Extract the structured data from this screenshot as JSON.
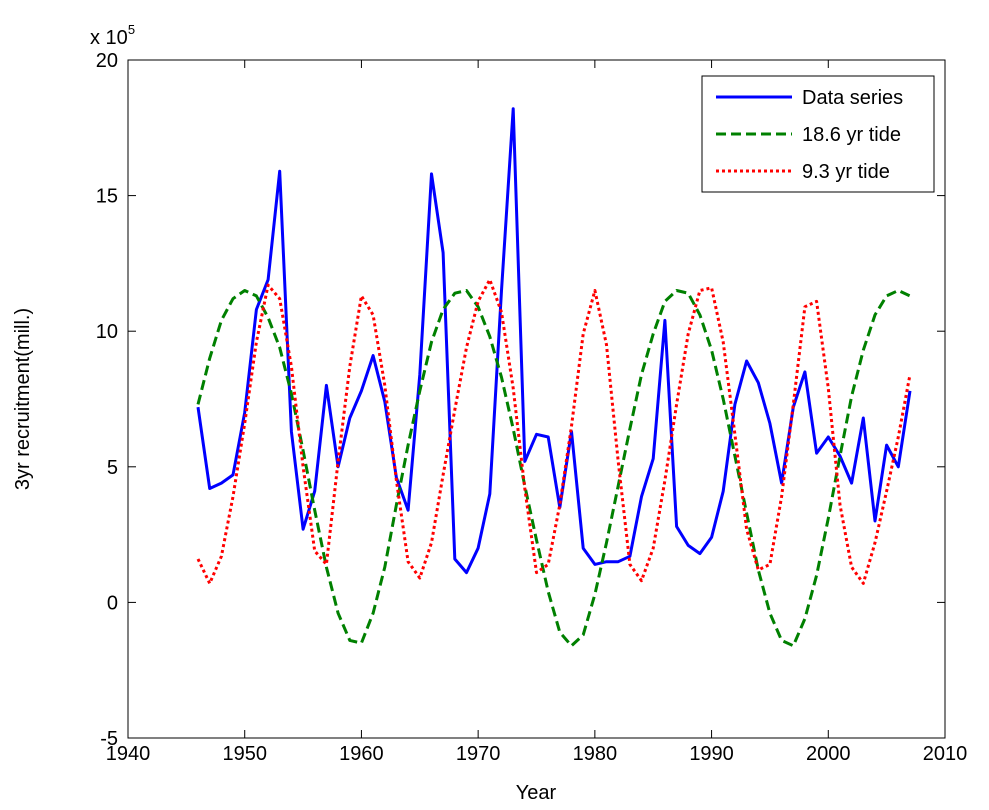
{
  "chart_data": {
    "type": "line",
    "title": "",
    "xlabel": "Year",
    "ylabel": "3yr recruitment(mill.)",
    "y_multiplier": "x 10",
    "y_multiplier_exp": "5",
    "xlim": [
      1940,
      2010
    ],
    "ylim": [
      -5,
      20
    ],
    "xticks": [
      1940,
      1950,
      1960,
      1970,
      1980,
      1990,
      2000,
      2010
    ],
    "yticks": [
      -5,
      0,
      5,
      10,
      15,
      20
    ],
    "grid": false,
    "legend_position": "top-right",
    "x": [
      1946,
      1947,
      1948,
      1949,
      1950,
      1951,
      1952,
      1953,
      1954,
      1955,
      1956,
      1957,
      1958,
      1959,
      1960,
      1961,
      1962,
      1963,
      1964,
      1965,
      1966,
      1967,
      1968,
      1969,
      1970,
      1971,
      1972,
      1973,
      1974,
      1975,
      1976,
      1977,
      1978,
      1979,
      1980,
      1981,
      1982,
      1983,
      1984,
      1985,
      1986,
      1987,
      1988,
      1989,
      1990,
      1991,
      1992,
      1993,
      1994,
      1995,
      1996,
      1997,
      1998,
      1999,
      2000,
      2001,
      2002,
      2003,
      2004,
      2005,
      2006,
      2007
    ],
    "series": [
      {
        "name": "Data series",
        "color": "#0000ff",
        "dash": "solid",
        "values": [
          7.2,
          4.2,
          4.4,
          4.7,
          7.0,
          10.8,
          11.9,
          15.9,
          6.3,
          2.7,
          4.1,
          8.0,
          5.0,
          6.8,
          7.8,
          9.1,
          7.4,
          4.6,
          3.4,
          8.4,
          15.8,
          12.9,
          1.6,
          1.1,
          2.0,
          4.0,
          11.5,
          18.2,
          5.2,
          6.2,
          6.1,
          3.5,
          6.3,
          2.0,
          1.4,
          1.5,
          1.5,
          1.7,
          3.9,
          5.3,
          10.4,
          2.8,
          2.1,
          1.8,
          2.4,
          4.1,
          7.3,
          8.9,
          8.1,
          6.6,
          4.4,
          7.2,
          8.5,
          5.5,
          6.1,
          5.4,
          4.4,
          6.8,
          3.0,
          5.8,
          5.0,
          7.8
        ]
      },
      {
        "name": "18.6 yr tide",
        "color": "#008000",
        "dash": "dashed",
        "values": [
          7.3,
          9.0,
          10.4,
          11.2,
          11.5,
          11.3,
          10.5,
          9.4,
          7.7,
          5.6,
          3.4,
          1.3,
          -0.4,
          -1.4,
          -1.5,
          -0.4,
          1.3,
          3.6,
          5.8,
          7.8,
          9.6,
          10.8,
          11.4,
          11.5,
          10.9,
          9.8,
          8.3,
          6.4,
          4.3,
          2.3,
          0.4,
          -1.1,
          -1.6,
          -1.2,
          0.3,
          2.2,
          4.3,
          6.4,
          8.4,
          9.9,
          11.1,
          11.5,
          11.4,
          10.6,
          9.3,
          7.5,
          5.4,
          3.3,
          1.2,
          -0.4,
          -1.4,
          -1.6,
          -0.6,
          1.0,
          3.1,
          5.4,
          7.6,
          9.3,
          10.6,
          11.3,
          11.5,
          11.3
        ]
      },
      {
        "name": "9.3 yr tide",
        "color": "#ff0000",
        "dash": "dotted",
        "values": [
          1.6,
          0.7,
          1.7,
          3.9,
          6.6,
          9.6,
          11.7,
          11.2,
          8.7,
          5.0,
          1.9,
          1.4,
          5.2,
          8.7,
          11.3,
          10.6,
          8.0,
          4.5,
          1.5,
          0.9,
          2.2,
          4.7,
          7.1,
          9.4,
          11.1,
          11.9,
          10.7,
          7.9,
          4.2,
          1.1,
          1.4,
          3.6,
          6.5,
          9.9,
          11.5,
          9.5,
          5.2,
          1.4,
          0.8,
          2.0,
          4.5,
          7.3,
          9.9,
          11.5,
          11.6,
          9.6,
          6.2,
          2.7,
          1.2,
          1.4,
          3.9,
          7.3,
          10.9,
          11.1,
          7.9,
          3.6,
          1.3,
          0.7,
          2.2,
          4.1,
          6.1,
          8.4
        ]
      }
    ]
  }
}
